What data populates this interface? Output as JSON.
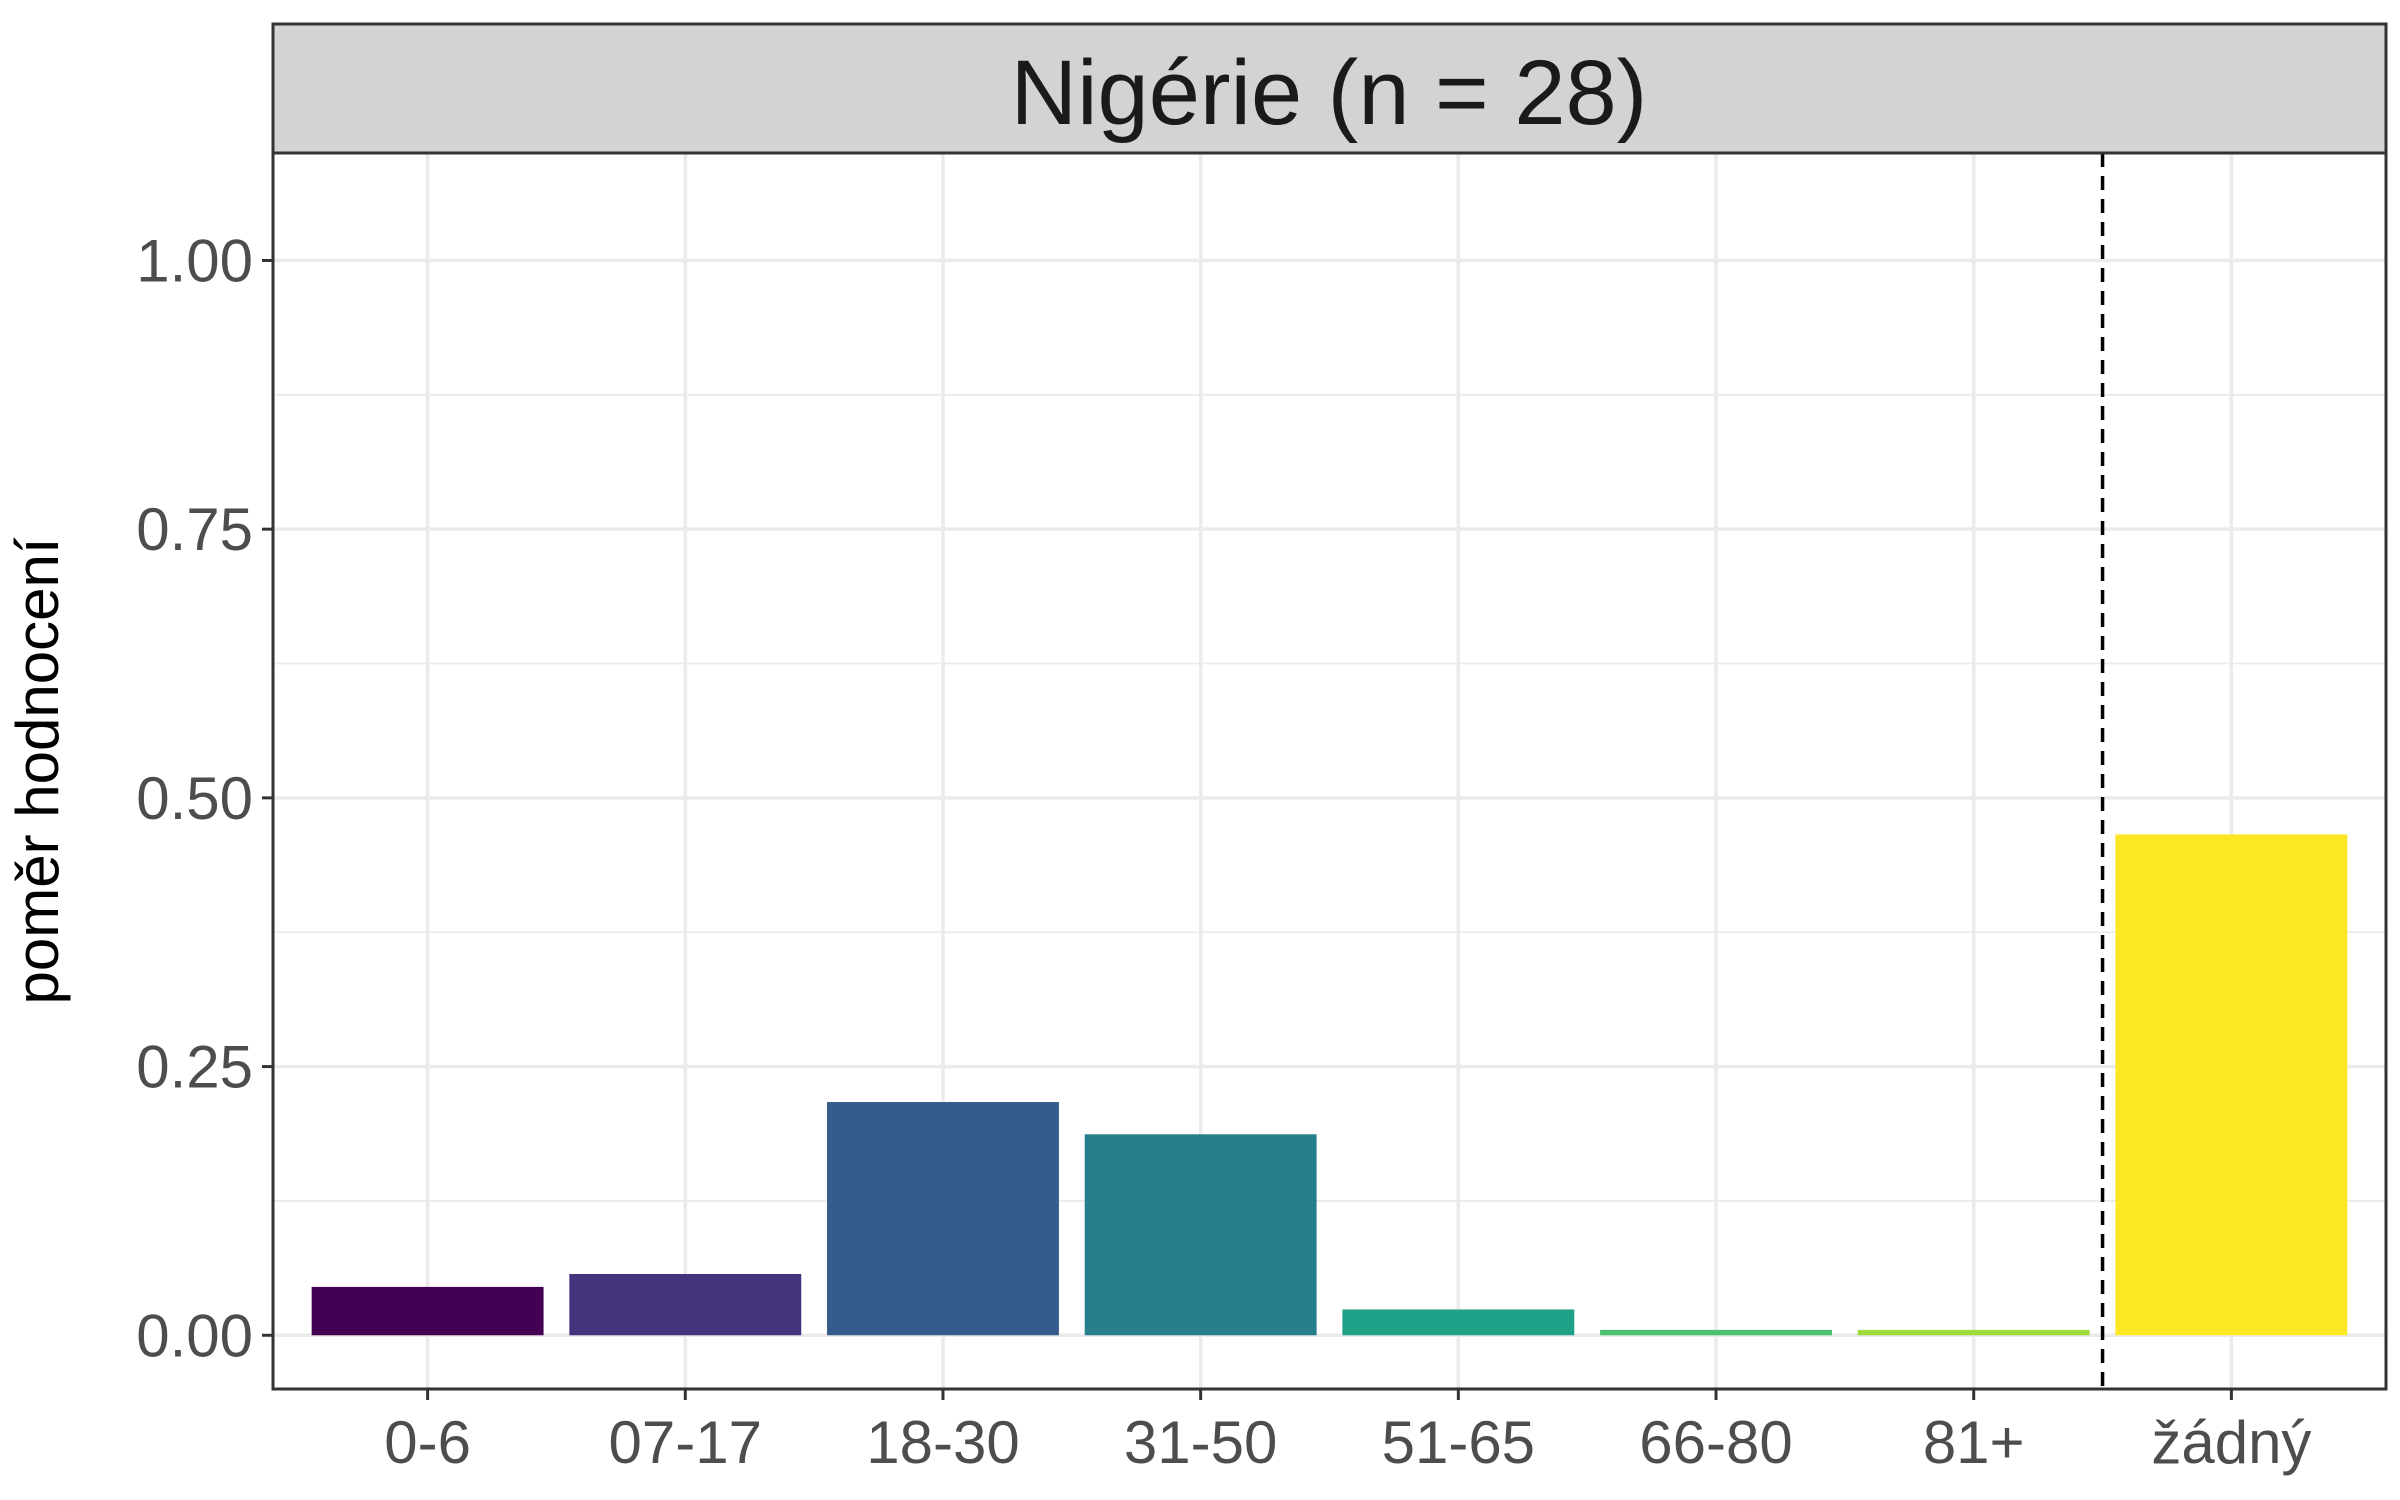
{
  "chart_data": {
    "type": "bar",
    "facet_title": "Nigérie (n = 28)",
    "xlabel": "",
    "ylabel": "poměr hodnocení",
    "categories": [
      "0-6",
      "07-17",
      "18-30",
      "31-50",
      "51-65",
      "66-80",
      "81+",
      "žádný"
    ],
    "values": [
      0.045,
      0.057,
      0.217,
      0.187,
      0.024,
      0.005,
      0.005,
      0.466
    ],
    "colors": [
      "#440154",
      "#46337E",
      "#365C8D",
      "#277F8E",
      "#1FA187",
      "#4AC16D",
      "#9FDA3A",
      "#FDE725"
    ],
    "ylim": [
      -0.05,
      1.1
    ],
    "yticks": [
      0,
      0.25,
      0.5,
      0.75,
      1.0
    ],
    "ytick_labels": [
      "0.00",
      "0.25",
      "0.50",
      "0.75",
      "1.00"
    ],
    "separator_after_category": "81+",
    "grid": true
  }
}
